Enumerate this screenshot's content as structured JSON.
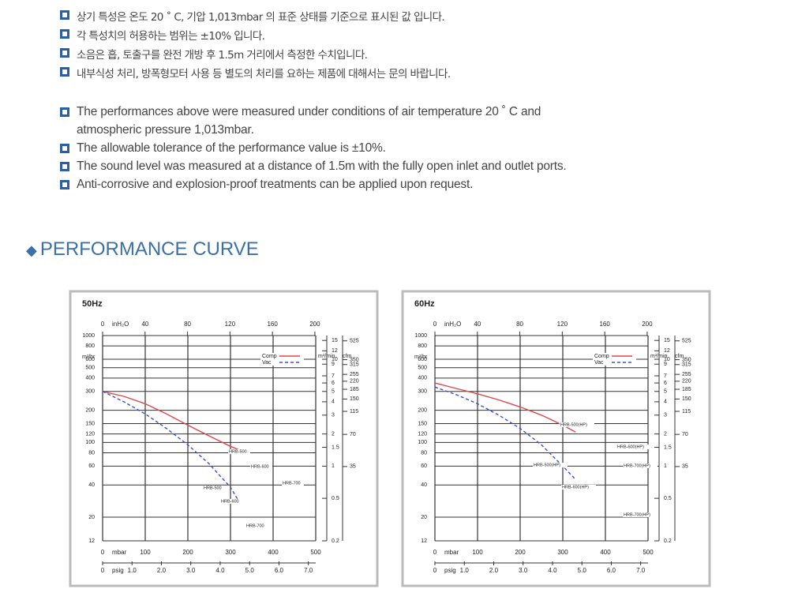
{
  "notes_ko": [
    "상기 특성은 온도 20 ˚ C, 기압 1,013mbar 의 표준 상태를 기준으로 표시된 값 입니다.",
    "각 특성치의 허용하는 범위는 ±10% 입니다.",
    "소음은 흡, 토출구를 완전 개방 후 1.5m 거리에서 측정한 수치입니다.",
    "내부식성 처리, 방폭형모터 사용 등 별도의 처리를 요하는 제품에 대해서는 문의 바랍니다."
  ],
  "notes_en": [
    {
      "lines": [
        "The performances above were measured under conditions of air temperature 20 ˚ C and",
        "atmospheric pressure 1,013mbar."
      ]
    },
    {
      "lines": [
        "The allowable tolerance of the performance value is ±10%."
      ]
    },
    {
      "lines": [
        "The sound level was measured at a distance of 1.5m with the fully open inlet and outlet ports."
      ]
    },
    {
      "lines": [
        "Anti-corrosive and explosion-proof treatments can be applied upon request."
      ]
    }
  ],
  "section_title": "PERFORMANCE CURVE",
  "chart_data": [
    {
      "type": "line",
      "title": "50Hz",
      "x_label": "mbar",
      "y_label": "m³/hr",
      "x2_label": "inH₂O",
      "x3_label": "psig",
      "y2_label": "m³/min",
      "y3_label": "cfm",
      "log_y": true,
      "grid": true,
      "xlim": [
        0,
        500
      ],
      "xticks": [
        0,
        100,
        200,
        300,
        400,
        500
      ],
      "x2lim": [
        0,
        200.8
      ],
      "x2ticks": [
        0,
        40,
        80,
        120,
        160,
        200
      ],
      "x3lim": [
        0,
        7.25
      ],
      "x3ticks": [
        0,
        {
          "value": 1,
          "label": "1.0"
        },
        {
          "value": 2,
          "label": "2.0"
        },
        {
          "value": 3,
          "label": "3.0"
        },
        {
          "value": 4,
          "label": "4.0"
        },
        {
          "value": 5,
          "label": "5.0"
        },
        {
          "value": 6,
          "label": "6.0"
        },
        {
          "value": 7,
          "label": "7.0"
        }
      ],
      "ylim": [
        12,
        1000
      ],
      "yticks": [
        12,
        20,
        40,
        60,
        80,
        100,
        120,
        150,
        200,
        300,
        400,
        500,
        600,
        800,
        1000
      ],
      "y2lim": [
        0.2,
        16.67
      ],
      "y2ticks": [
        0.2,
        0.5,
        1,
        1.5,
        2,
        3,
        4,
        5,
        6,
        7,
        9,
        10,
        12,
        15
      ],
      "y3lim": [
        7.06,
        588.6
      ],
      "y3ticks": [
        35,
        70,
        115,
        150,
        185,
        220,
        255,
        315,
        350,
        525
      ],
      "series": [
        {
          "name": "Comp",
          "color": "#e0474c",
          "dashed": false,
          "x": [
            0,
            50,
            100,
            150,
            200,
            250,
            300,
            330
          ],
          "values": [
            300,
            270,
            230,
            185,
            145,
            115,
            92,
            82
          ]
        },
        {
          "name": "Vac",
          "color": "#3a4fd0",
          "dashed": true,
          "x": [
            0,
            50,
            100,
            150,
            200,
            250,
            300,
            320
          ],
          "values": [
            300,
            240,
            185,
            135,
            95,
            63,
            38,
            28
          ]
        }
      ],
      "annotations": [
        "HRB-500",
        "HRB-600",
        "HRB-700",
        "HRB-500",
        "HRB-600",
        "HRB-700"
      ]
    },
    {
      "type": "line",
      "title": "60Hz",
      "x_label": "mbar",
      "y_label": "m³/hr",
      "x2_label": "inH₂O",
      "x3_label": "psig",
      "y2_label": "m³/min",
      "y3_label": "cfm",
      "log_y": true,
      "grid": true,
      "xlim": [
        0,
        500
      ],
      "xticks": [
        0,
        100,
        200,
        300,
        400,
        500
      ],
      "x2lim": [
        0,
        200.8
      ],
      "x2ticks": [
        0,
        40,
        80,
        120,
        160,
        200
      ],
      "x3lim": [
        0,
        7.25
      ],
      "x3ticks": [
        0,
        {
          "value": 1,
          "label": "1.0"
        },
        {
          "value": 2,
          "label": "2.0"
        },
        {
          "value": 3,
          "label": "3.0"
        },
        {
          "value": 4,
          "label": "4.0"
        },
        {
          "value": 5,
          "label": "5.0"
        },
        {
          "value": 6,
          "label": "6.0"
        },
        {
          "value": 7,
          "label": "7.0"
        }
      ],
      "ylim": [
        12,
        1000
      ],
      "yticks": [
        12,
        20,
        40,
        60,
        80,
        100,
        120,
        150,
        200,
        300,
        400,
        500,
        600,
        800,
        1000
      ],
      "y2lim": [
        0.2,
        16.67
      ],
      "y2ticks": [
        0.2,
        0.5,
        1,
        1.5,
        2,
        3,
        4,
        5,
        6,
        7,
        9,
        10,
        12,
        15
      ],
      "y3lim": [
        7.06,
        588.6
      ],
      "y3ticks": [
        35,
        70,
        115,
        150,
        185,
        220,
        255,
        315,
        350,
        525
      ],
      "series": [
        {
          "name": "Comp",
          "color": "#e0474c",
          "dashed": false,
          "x": [
            0,
            50,
            100,
            150,
            200,
            250,
            300,
            330
          ],
          "values": [
            360,
            320,
            285,
            250,
            215,
            180,
            145,
            125
          ]
        },
        {
          "name": "Vac",
          "color": "#3a4fd0",
          "dashed": true,
          "x": [
            0,
            50,
            100,
            150,
            200,
            250,
            300,
            330
          ],
          "values": [
            330,
            280,
            230,
            180,
            135,
            95,
            60,
            45
          ]
        }
      ],
      "annotations": [
        "HRB-500(HP)",
        "HRB-600(HP)",
        "HRB-700(HP)",
        "HRB-500(HP)",
        "HRB-600(HP)",
        "HRB-700(HP)"
      ]
    }
  ]
}
